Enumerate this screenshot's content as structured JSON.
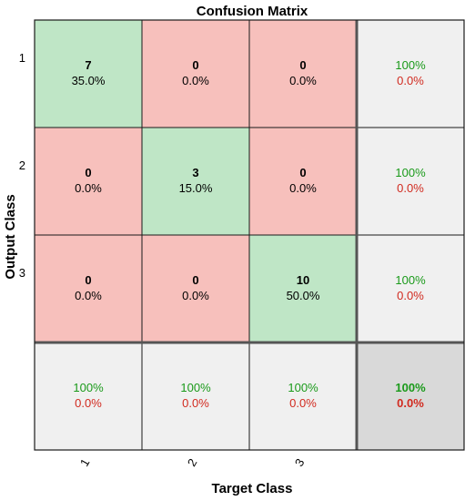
{
  "chart_data": {
    "type": "heatmap",
    "title": "Confusion Matrix",
    "xlabel": "Target Class",
    "ylabel": "Output Class",
    "classes": [
      "1",
      "2",
      "3"
    ],
    "matrix": [
      [
        7,
        0,
        0
      ],
      [
        0,
        3,
        0
      ],
      [
        0,
        0,
        10
      ]
    ],
    "cell_percent": [
      [
        "35.0%",
        "0.0%",
        "0.0%"
      ],
      [
        "0.0%",
        "15.0%",
        "0.0%"
      ],
      [
        "0.0%",
        "0.0%",
        "50.0%"
      ]
    ],
    "row_summary": [
      {
        "correct": "100%",
        "incorrect": "0.0%"
      },
      {
        "correct": "100%",
        "incorrect": "0.0%"
      },
      {
        "correct": "100%",
        "incorrect": "0.0%"
      }
    ],
    "column_summary": [
      {
        "correct": "100%",
        "incorrect": "0.0%"
      },
      {
        "correct": "100%",
        "incorrect": "0.0%"
      },
      {
        "correct": "100%",
        "incorrect": "0.0%"
      }
    ],
    "overall": {
      "correct": "100%",
      "incorrect": "0.0%"
    },
    "colors": {
      "diagonal": "#bfe6c6",
      "off_diagonal": "#f7c0bc",
      "summary": "#f0f0f0",
      "overall": "#d9d9d9",
      "correct_text": "#1a9a1a",
      "incorrect_text": "#d12a1f"
    }
  }
}
